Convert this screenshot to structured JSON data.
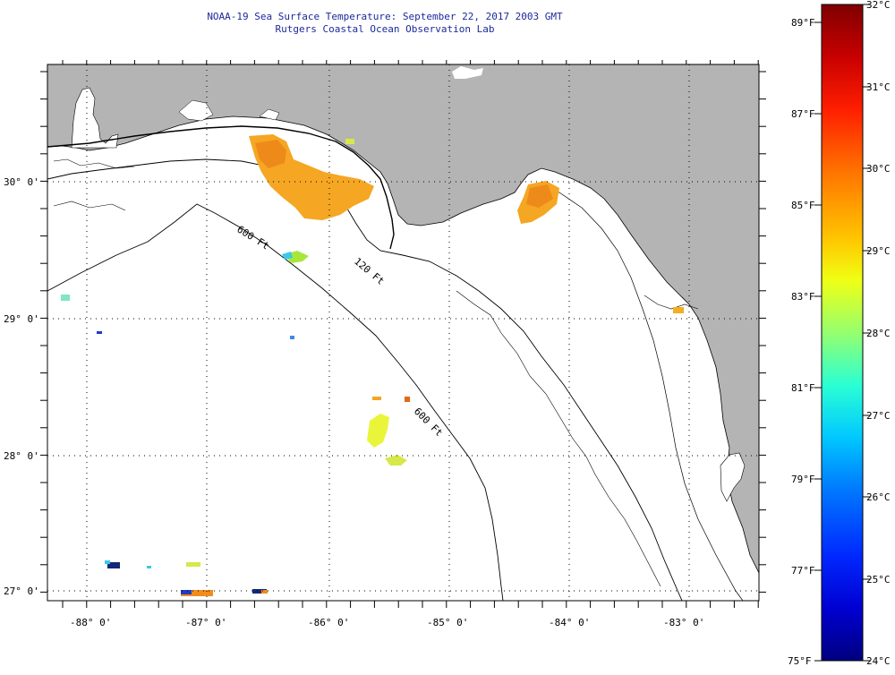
{
  "header": {
    "title": "NOAA-19 Sea Surface Temperature:  September 22, 2017 2003 GMT",
    "subtitle": "Rutgers Coastal Ocean Observation Lab"
  },
  "axes": {
    "latitude_labels": [
      "30° 0'",
      "29° 0'",
      "28° 0'",
      "27° 0'"
    ],
    "longitude_labels": [
      "-88° 0'",
      "-87° 0'",
      "-86° 0'",
      "-85° 0'",
      "-84° 0'",
      "-83° 0'"
    ]
  },
  "contours": {
    "label_600": "600 Ft",
    "label_120": "120 Ft",
    "label_600_south": "600 Ft"
  },
  "colorbar": {
    "fahrenheit_labels": [
      "89°F",
      "87°F",
      "85°F",
      "83°F",
      "81°F",
      "79°F",
      "77°F",
      "75°F"
    ],
    "celsius_labels": [
      "32°C",
      "31°C",
      "30°C",
      "29°C",
      "28°C",
      "27°C",
      "26°C",
      "25°C",
      "24°C"
    ],
    "colors": [
      "#7f0000",
      "#d40000",
      "#ff2a00",
      "#ff7f00",
      "#ffd400",
      "#d4ff2a",
      "#7fff7f",
      "#2affd4",
      "#00d4ff",
      "#007fff",
      "#002aff",
      "#0000d4",
      "#00007f"
    ]
  },
  "colors": {
    "land": "#b4b4b4",
    "water": "#ffffff",
    "title": "#1a2a9a"
  }
}
